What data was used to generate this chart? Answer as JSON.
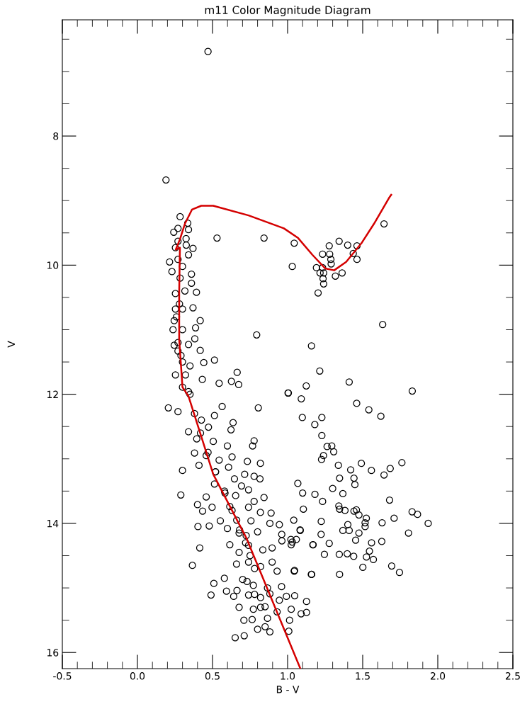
{
  "chart_data": {
    "type": "scatter",
    "title": "m11 Color Magnitude Diagram",
    "xlabel": "B - V",
    "ylabel": "V",
    "xlim": [
      -0.5,
      2.5
    ],
    "ylim": [
      16.25,
      6.2
    ],
    "grid": false,
    "xticks": [
      {
        "value": -0.5,
        "label": "-0.5"
      },
      {
        "value": -0.4,
        "label": null
      },
      {
        "value": -0.3,
        "label": null
      },
      {
        "value": -0.2,
        "label": null
      },
      {
        "value": -0.1,
        "label": null
      },
      {
        "value": 0,
        "label": "0.0"
      },
      {
        "value": 0.1,
        "label": null
      },
      {
        "value": 0.2,
        "label": null
      },
      {
        "value": 0.3,
        "label": null
      },
      {
        "value": 0.4,
        "label": null
      },
      {
        "value": 0.5,
        "label": "0.5"
      },
      {
        "value": 0.6,
        "label": null
      },
      {
        "value": 0.7,
        "label": null
      },
      {
        "value": 0.8,
        "label": null
      },
      {
        "value": 0.9,
        "label": null
      },
      {
        "value": 1,
        "label": "1.0"
      },
      {
        "value": 1.1,
        "label": null
      },
      {
        "value": 1.2,
        "label": null
      },
      {
        "value": 1.3,
        "label": null
      },
      {
        "value": 1.4,
        "label": null
      },
      {
        "value": 1.5,
        "label": "1.5"
      },
      {
        "value": 1.6,
        "label": null
      },
      {
        "value": 1.7,
        "label": null
      },
      {
        "value": 1.8,
        "label": null
      },
      {
        "value": 1.9,
        "label": null
      },
      {
        "value": 2,
        "label": "2.0"
      },
      {
        "value": 2.1,
        "label": null
      },
      {
        "value": 2.2,
        "label": null
      },
      {
        "value": 2.3,
        "label": null
      },
      {
        "value": 2.4,
        "label": null
      },
      {
        "value": 2.5,
        "label": "2.5"
      }
    ],
    "yticks": [
      {
        "value": 6.5,
        "label": null
      },
      {
        "value": 7,
        "label": null
      },
      {
        "value": 7.5,
        "label": null
      },
      {
        "value": 8,
        "label": "8"
      },
      {
        "value": 8.5,
        "label": null
      },
      {
        "value": 9,
        "label": null
      },
      {
        "value": 9.5,
        "label": null
      },
      {
        "value": 10,
        "label": "10"
      },
      {
        "value": 10.5,
        "label": null
      },
      {
        "value": 11,
        "label": null
      },
      {
        "value": 11.5,
        "label": null
      },
      {
        "value": 12,
        "label": "12"
      },
      {
        "value": 12.5,
        "label": null
      },
      {
        "value": 13,
        "label": null
      },
      {
        "value": 13.5,
        "label": null
      },
      {
        "value": 14,
        "label": "14"
      },
      {
        "value": 14.5,
        "label": null
      },
      {
        "value": 15,
        "label": null
      },
      {
        "value": 15.5,
        "label": null
      },
      {
        "value": 16,
        "label": "16"
      }
    ],
    "series": [
      {
        "color": "#000000",
        "marker": "circle",
        "x": [
          0.47,
          0.19,
          0.284,
          0.335,
          0.34,
          0.27,
          0.242,
          0.324,
          0.27,
          0.253,
          0.325,
          0.37,
          0.34,
          0.214,
          0.27,
          0.23,
          0.3,
          0.36,
          0.36,
          0.284,
          0.316,
          0.393,
          0.253,
          0.53,
          0.843,
          1.044,
          1.031,
          0.37,
          0.3,
          0.253,
          0.418,
          0.245,
          0.387,
          0.237,
          0.3,
          0.382,
          0.245,
          0.34,
          0.418,
          0.27,
          0.794,
          0.513,
          0.442,
          0.253,
          0.35,
          0.432,
          0.664,
          0.544,
          0.626,
          0.674,
          1.003,
          0.3,
          0.34,
          0.206,
          0.27,
          0.564,
          0.805,
          0.513,
          0.637,
          0.623,
          0.473,
          0.34,
          0.426,
          0.395,
          0.505,
          0.599,
          0.777,
          0.767,
          0.38,
          0.458,
          0.63,
          0.544,
          0.732,
          0.819,
          0.3,
          0.41,
          0.52,
          0.607,
          0.714,
          0.777,
          0.816,
          0.646,
          0.513,
          0.693,
          0.74,
          0.289,
          0.458,
          0.583,
          0.654,
          0.843,
          0.777,
          0.4,
          0.497,
          0.615,
          0.74,
          0.819,
          0.89,
          0.434,
          0.552,
          0.661,
          0.756,
          0.882,
          0.945,
          1.083,
          0.403,
          0.478,
          0.599,
          0.677,
          0.724,
          0.8,
          0.961,
          0.415,
          0.366,
          0.615,
          0.677,
          0.74,
          0.835,
          0.897,
          0.962,
          1.031,
          1.17,
          0.66,
          0.74,
          0.82,
          0.897,
          0.93,
          1.044,
          1.158,
          0.579,
          0.509,
          0.701,
          0.772,
          0.866,
          0.96,
          0.593,
          0.663,
          0.49,
          0.641,
          0.74,
          0.82,
          0.882,
          0.992,
          1.047,
          0.945,
          1.126,
          0.677,
          0.772,
          0.85,
          0.93,
          1.024,
          1.09,
          1.126,
          0.709,
          0.764,
          0.866,
          1.013,
          0.85,
          0.882,
          1.008,
          0.651,
          0.711,
          0.8,
          1.642,
          1.277,
          1.343,
          1.4,
          1.462,
          1.233,
          1.28,
          1.288,
          1.29,
          1.437,
          1.462,
          1.192,
          1.233,
          1.216,
          1.24,
          1.363,
          1.318,
          1.236,
          1.24,
          1.203,
          1.633,
          1.159,
          1.214,
          1.124,
          1.41,
          1.83,
          1.005,
          1.091,
          1.46,
          1.541,
          1.621,
          1.098,
          1.228,
          1.181,
          1.228,
          1.263,
          1.294,
          1.307,
          1.239,
          1.226,
          1.338,
          1.42,
          1.491,
          1.558,
          1.642,
          1.683,
          1.761,
          1.346,
          1.442,
          1.448,
          1.068,
          1.3,
          1.368,
          1.1,
          1.182,
          1.233,
          1.679,
          1.341,
          1.346,
          1.382,
          1.442,
          1.458,
          1.475,
          1.524,
          1.516,
          1.516,
          1.105,
          1.041,
          1.224,
          1.629,
          1.709,
          1.829,
          1.865,
          1.936,
          1.805,
          1.084,
          1.401,
          1.368,
          1.41,
          1.475,
          1.223,
          1.022,
          1.058,
          1.024,
          1.168,
          1.277,
          1.453,
          1.559,
          1.627,
          1.545,
          1.245,
          1.344,
          1.397,
          1.44,
          1.525,
          1.571,
          1.501,
          1.693,
          1.745,
          1.046,
          1.16,
          1.346,
          0.3,
          0.32,
          0.35,
          0.38,
          0.42,
          0.47,
          0.52,
          0.58,
          0.63,
          0.68,
          0.72,
          0.75,
          0.78,
          0.73,
          0.78,
          0.82,
          0.26,
          0.28,
          0.27,
          0.29
        ],
        "values": [
          6.69,
          8.68,
          9.25,
          9.35,
          9.45,
          9.43,
          9.49,
          9.59,
          9.63,
          9.73,
          9.69,
          9.74,
          9.84,
          9.95,
          9.91,
          10.1,
          10.02,
          10.14,
          10.28,
          10.2,
          10.4,
          10.42,
          10.44,
          9.58,
          9.58,
          9.66,
          10.02,
          10.66,
          10.68,
          10.68,
          10.86,
          10.86,
          10.97,
          11.0,
          11.0,
          11.14,
          11.24,
          11.23,
          11.32,
          11.33,
          11.08,
          11.47,
          11.51,
          11.7,
          11.56,
          11.77,
          11.66,
          11.83,
          11.8,
          11.85,
          11.98,
          11.89,
          11.96,
          12.21,
          12.27,
          12.19,
          12.21,
          12.33,
          12.44,
          12.55,
          12.51,
          12.58,
          12.4,
          12.69,
          12.73,
          12.8,
          12.72,
          12.8,
          12.91,
          12.95,
          12.97,
          13.02,
          13.04,
          13.07,
          13.18,
          13.1,
          13.2,
          13.13,
          13.24,
          13.27,
          13.31,
          13.31,
          13.39,
          13.42,
          13.48,
          13.56,
          13.59,
          13.53,
          13.57,
          13.6,
          13.66,
          13.71,
          13.75,
          13.74,
          13.75,
          13.83,
          13.84,
          13.81,
          13.96,
          13.95,
          13.96,
          14.0,
          14.02,
          14.1,
          14.05,
          14.04,
          14.08,
          14.15,
          14.19,
          14.13,
          14.17,
          14.38,
          14.65,
          14.33,
          14.45,
          14.34,
          14.41,
          14.38,
          14.27,
          14.29,
          14.33,
          14.63,
          14.6,
          14.67,
          14.6,
          14.74,
          14.74,
          14.79,
          14.85,
          14.93,
          14.87,
          14.96,
          15.0,
          14.98,
          15.05,
          15.04,
          15.11,
          15.13,
          15.11,
          15.15,
          15.09,
          15.13,
          15.12,
          15.19,
          15.21,
          15.3,
          15.33,
          15.29,
          15.37,
          15.33,
          15.4,
          15.38,
          15.5,
          15.49,
          15.47,
          15.5,
          15.6,
          15.68,
          15.67,
          15.77,
          15.74,
          15.64,
          9.36,
          9.7,
          9.63,
          9.69,
          9.7,
          9.83,
          9.83,
          9.91,
          9.98,
          9.82,
          9.91,
          10.04,
          10.04,
          10.12,
          10.12,
          10.12,
          10.17,
          10.21,
          10.29,
          10.43,
          10.92,
          11.25,
          11.64,
          11.87,
          11.81,
          11.95,
          11.98,
          12.07,
          12.14,
          12.24,
          12.34,
          12.36,
          12.36,
          12.47,
          12.64,
          12.81,
          12.8,
          12.89,
          12.95,
          13.01,
          13.1,
          13.17,
          13.07,
          13.18,
          13.25,
          13.15,
          13.06,
          13.3,
          13.3,
          13.4,
          13.38,
          13.46,
          13.54,
          13.53,
          13.55,
          13.66,
          13.64,
          13.73,
          13.78,
          13.8,
          13.81,
          13.79,
          13.87,
          13.92,
          13.99,
          14.05,
          13.78,
          13.95,
          13.97,
          13.99,
          13.92,
          13.82,
          13.86,
          14.0,
          14.15,
          14.11,
          14.02,
          14.11,
          14.11,
          14.15,
          14.17,
          14.25,
          14.25,
          14.33,
          14.33,
          14.31,
          14.26,
          14.3,
          14.28,
          14.43,
          14.48,
          14.48,
          14.47,
          14.51,
          14.52,
          14.56,
          14.68,
          14.66,
          14.76,
          14.73,
          14.79,
          14.79,
          11.5,
          11.7,
          12.0,
          12.3,
          12.6,
          12.9,
          13.2,
          13.5,
          13.8,
          14.1,
          14.3,
          14.5,
          14.7,
          14.9,
          15.1,
          15.3,
          10.8,
          10.6,
          11.2,
          11.4
        ]
      },
      {
        "type": "line",
        "color": "#d40000",
        "x": [
          1.085,
          0.726,
          0.505,
          0.34,
          0.3,
          0.278,
          0.278,
          0.283,
          0.255,
          0.283,
          0.316,
          0.363,
          0.425,
          0.505,
          0.74,
          0.975,
          1.07,
          1.165,
          1.25,
          1.31,
          1.39,
          1.495,
          1.575,
          1.675,
          1.69
        ],
        "values": [
          16.25,
          14.23,
          13.24,
          12.03,
          11.89,
          11.15,
          10.42,
          9.73,
          9.76,
          9.6,
          9.36,
          9.14,
          9.08,
          9.08,
          9.23,
          9.43,
          9.58,
          9.84,
          10.05,
          10.08,
          9.95,
          9.65,
          9.36,
          8.96,
          8.91
        ]
      }
    ]
  }
}
